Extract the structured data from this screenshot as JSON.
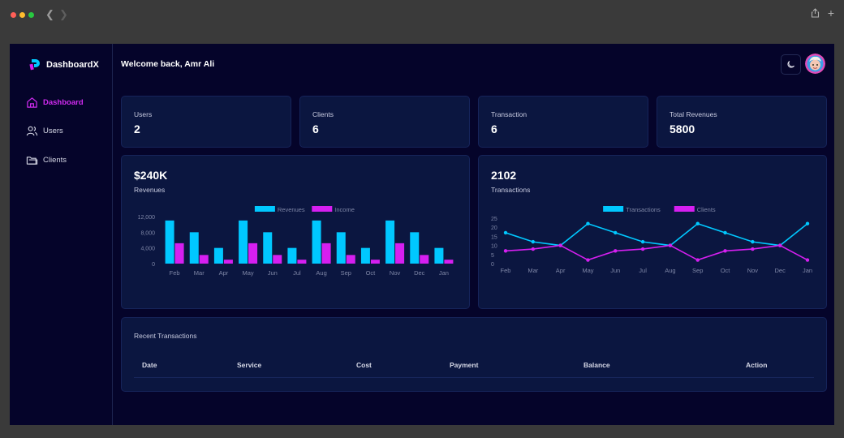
{
  "app": {
    "brand": "DashboardX",
    "welcome": "Welcome back, Amr Ali"
  },
  "colors": {
    "cyan": "#00c8ff",
    "magenta": "#d61ff0",
    "background": "#05042a",
    "card": "#0b1640"
  },
  "sidebar": {
    "items": [
      {
        "label": "Dashboard",
        "icon": "home-icon",
        "active": true
      },
      {
        "label": "Users",
        "icon": "users-icon",
        "active": false
      },
      {
        "label": "Clients",
        "icon": "folder-icon",
        "active": false
      }
    ]
  },
  "header": {
    "theme_icon": "moon-icon",
    "avatar_icon": "avatar-icon"
  },
  "stats": [
    {
      "label": "Users",
      "value": "2"
    },
    {
      "label": "Clients",
      "value": "6"
    },
    {
      "label": "Transaction",
      "value": "6"
    },
    {
      "label": "Total Revenues",
      "value": "5800"
    }
  ],
  "revenue_card": {
    "value": "$240K",
    "caption": "Revenues"
  },
  "transactions_card": {
    "value": "2102",
    "caption": "Transactions"
  },
  "chart_data": [
    {
      "type": "bar",
      "categories": [
        "Feb",
        "Mar",
        "Apr",
        "May",
        "Jun",
        "Jul",
        "Aug",
        "Sep",
        "Oct",
        "Nov",
        "Dec",
        "Jan"
      ],
      "series": [
        {
          "name": "Revenues",
          "values": [
            11000,
            8000,
            4000,
            11000,
            8000,
            4000,
            11000,
            8000,
            4000,
            11000,
            8000,
            4000
          ]
        },
        {
          "name": "Income",
          "values": [
            5200,
            2200,
            1000,
            5200,
            2200,
            1000,
            5200,
            2200,
            1000,
            5200,
            2200,
            1000
          ]
        }
      ],
      "yticks": [
        "0",
        "4,000",
        "8,000",
        "12,000"
      ],
      "ylim": [
        0,
        12000
      ],
      "legend": "top"
    },
    {
      "type": "line",
      "categories": [
        "Feb",
        "Mar",
        "Apr",
        "May",
        "Jun",
        "Jul",
        "Aug",
        "Sep",
        "Oct",
        "Nov",
        "Dec",
        "Jan"
      ],
      "series": [
        {
          "name": "Transactions",
          "values": [
            17,
            12,
            10,
            22,
            17,
            12,
            10,
            22,
            17,
            12,
            10,
            22
          ]
        },
        {
          "name": "Clients",
          "values": [
            7,
            8,
            10,
            2,
            7,
            8,
            10,
            2,
            7,
            8,
            10,
            2
          ]
        }
      ],
      "yticks": [
        "0",
        "5",
        "10",
        "15",
        "20",
        "25"
      ],
      "ylim": [
        0,
        25
      ],
      "legend": "top"
    }
  ],
  "recent_transactions": {
    "title": "Recent Transactions",
    "columns": [
      "Date",
      "Service",
      "Cost",
      "Payment",
      "Balance",
      "Action"
    ]
  }
}
